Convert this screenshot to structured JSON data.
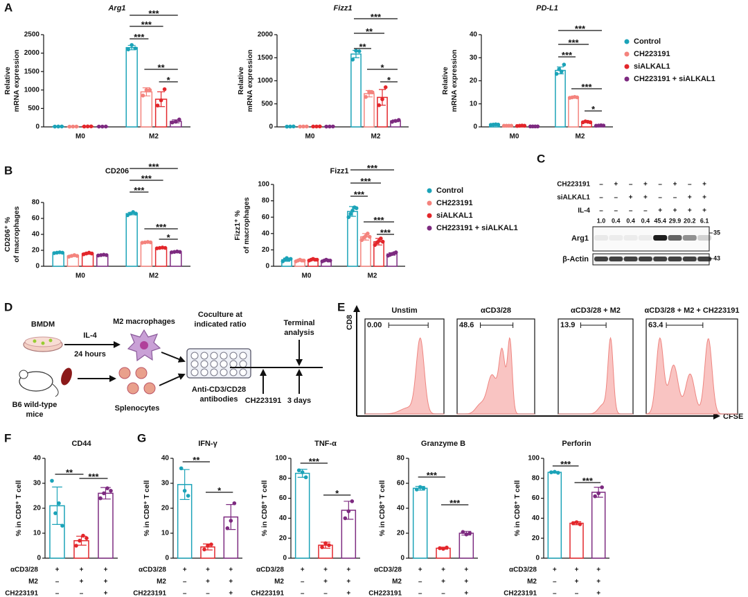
{
  "panels": [
    "A",
    "B",
    "C",
    "D",
    "E",
    "F",
    "G"
  ],
  "chart_data": [
    {
      "type": "bar",
      "title": "Arg1",
      "ylabel": [
        "Relative",
        "mRNA expression"
      ],
      "categories": [
        "M0",
        "M2"
      ],
      "ylim": [
        0,
        2500
      ],
      "yticks": [
        0,
        500,
        1000,
        1500,
        2000,
        2500
      ],
      "series": [
        {
          "name": "Control",
          "color": "#1ba3b8",
          "values": [
            10,
            2150
          ],
          "errors": [
            3,
            60
          ],
          "points": [
            [
              9,
              10,
              11
            ],
            [
              2100,
              2220,
              2130
            ]
          ]
        },
        {
          "name": "CH223191",
          "color": "#f4837d",
          "values": [
            8,
            950
          ],
          "errors": [
            2,
            110
          ],
          "points": [
            [
              7,
              8,
              9
            ],
            [
              850,
              1000,
              1000
            ]
          ]
        },
        {
          "name": "siALKAL1",
          "color": "#e3262b",
          "values": [
            12,
            750
          ],
          "errors": [
            3,
            200
          ],
          "points": [
            [
              10,
              12,
              14
            ],
            [
              580,
              720,
              1020
            ]
          ]
        },
        {
          "name": "CH223191 + siALKAL1",
          "color": "#7d2a80",
          "values": [
            9,
            150
          ],
          "errors": [
            2,
            40
          ],
          "points": [
            [
              8,
              9,
              10
            ],
            [
              120,
              140,
              200
            ]
          ]
        }
      ],
      "annotations": [
        "***",
        "***",
        "***",
        "**",
        "*"
      ]
    },
    {
      "type": "bar",
      "title": "Fizz1",
      "ylabel": [
        "Relative",
        "mRNA expression"
      ],
      "categories": [
        "M0",
        "M2"
      ],
      "ylim": [
        0,
        2000
      ],
      "yticks": [
        0,
        500,
        1000,
        1500,
        2000
      ],
      "series": [
        {
          "name": "Control",
          "color": "#1ba3b8",
          "values": [
            8,
            1580
          ],
          "errors": [
            5,
            80
          ],
          "points": [
            [
              6,
              8,
              10
            ],
            [
              1460,
              1650,
              1640
            ]
          ]
        },
        {
          "name": "CH223191",
          "color": "#f4837d",
          "values": [
            8,
            720
          ],
          "errors": [
            2,
            70
          ],
          "points": [
            [
              7,
              8,
              9
            ],
            [
              650,
              760,
              750
            ]
          ]
        },
        {
          "name": "siALKAL1",
          "color": "#e3262b",
          "values": [
            9,
            640
          ],
          "errors": [
            3,
            170
          ],
          "points": [
            [
              8,
              9,
              10
            ],
            [
              470,
              600,
              860
            ]
          ]
        },
        {
          "name": "CH223191 + siALKAL1",
          "color": "#7d2a80",
          "values": [
            8,
            130
          ],
          "errors": [
            2,
            20
          ],
          "points": [
            [
              7,
              8,
              9
            ],
            [
              110,
              130,
              150
            ]
          ]
        }
      ],
      "annotations": [
        "**",
        "**",
        "***",
        "*",
        "*"
      ]
    },
    {
      "type": "bar",
      "title": "PD-L1",
      "ylabel": [
        "Relative",
        "mRNA expression"
      ],
      "categories": [
        "M0",
        "M2"
      ],
      "ylim": [
        0,
        40
      ],
      "yticks": [
        0,
        10,
        20,
        30,
        40
      ],
      "series": [
        {
          "name": "Control",
          "color": "#1ba3b8",
          "values": [
            1,
            24.5
          ],
          "errors": [
            0.2,
            1.5
          ],
          "points": [
            [
              0.9,
              1,
              1.1,
              1
            ],
            [
              23,
              25,
              24,
              27
            ]
          ]
        },
        {
          "name": "CH223191",
          "color": "#f4837d",
          "values": [
            0.5,
            12.8
          ],
          "errors": [
            0.1,
            0.3
          ],
          "points": [
            [
              0.5,
              0.5,
              0.5,
              0.5
            ],
            [
              12.6,
              12.8,
              13,
              12.8
            ]
          ]
        },
        {
          "name": "siALKAL1",
          "color": "#e3262b",
          "values": [
            0.5,
            2.2
          ],
          "errors": [
            0.1,
            0.3
          ],
          "points": [
            [
              0.4,
              0.5,
              0.6,
              0.5
            ],
            [
              2,
              2.4,
              2.2,
              2
            ]
          ]
        },
        {
          "name": "CH223191 + siALKAL1",
          "color": "#7d2a80",
          "values": [
            0.2,
            0.6
          ],
          "errors": [
            0.05,
            0.1
          ],
          "points": [
            [
              0.2,
              0.2,
              0.2,
              0.2
            ],
            [
              0.5,
              0.6,
              0.7,
              0.6
            ]
          ]
        }
      ],
      "annotations": [
        "***",
        "***",
        "***",
        "***",
        "*"
      ]
    },
    {
      "type": "bar",
      "title": "CD206",
      "ylabel": [
        "CD206⁺ %",
        "of macrophages"
      ],
      "categories": [
        "M0",
        "M2"
      ],
      "ylim": [
        0,
        80
      ],
      "yticks": [
        0,
        20,
        40,
        60,
        80
      ],
      "series": [
        {
          "name": "Control",
          "color": "#1ba3b8",
          "values": [
            17,
            66
          ],
          "errors": [
            0.5,
            1.5
          ],
          "points": [
            [
              16.5,
              17,
              17.5,
              17
            ],
            [
              64,
              66,
              68,
              66
            ]
          ]
        },
        {
          "name": "CH223191",
          "color": "#f4837d",
          "values": [
            13,
            30
          ],
          "errors": [
            1,
            0.5
          ],
          "points": [
            [
              12,
              13,
              14,
              13
            ],
            [
              29.5,
              30,
              30.5,
              30
            ]
          ]
        },
        {
          "name": "siALKAL1",
          "color": "#e3262b",
          "values": [
            16,
            23
          ],
          "errors": [
            1,
            0.5
          ],
          "points": [
            [
              15,
              16,
              17,
              16
            ],
            [
              22.5,
              23,
              23.5,
              23
            ]
          ]
        },
        {
          "name": "CH223191 + siALKAL1",
          "color": "#7d2a80",
          "values": [
            14,
            18
          ],
          "errors": [
            0.5,
            0.5
          ],
          "points": [
            [
              13.5,
              14,
              14.5,
              14
            ],
            [
              17.5,
              18,
              18.5,
              18
            ]
          ]
        }
      ],
      "annotations": [
        "***",
        "***",
        "***",
        "***",
        "*"
      ]
    },
    {
      "type": "bar",
      "title": "Fizz1",
      "ylabel": [
        "Fizz1⁺ %",
        "of macrophages"
      ],
      "categories": [
        "M0",
        "M2"
      ],
      "ylim": [
        0,
        100
      ],
      "yticks": [
        0,
        20,
        40,
        60,
        80,
        100
      ],
      "series": [
        {
          "name": "Control",
          "color": "#1ba3b8",
          "values": [
            8,
            67
          ],
          "errors": [
            2,
            6
          ],
          "points": [
            [
              6,
              8,
              10,
              8,
              9
            ],
            [
              60,
              64,
              68,
              72,
              71
            ]
          ]
        },
        {
          "name": "CH223191",
          "color": "#f4837d",
          "values": [
            7,
            36
          ],
          "errors": [
            1,
            4
          ],
          "points": [
            [
              6,
              7,
              8,
              7,
              7
            ],
            [
              32,
              35,
              37,
              40,
              36
            ]
          ]
        },
        {
          "name": "siALKAL1",
          "color": "#e3262b",
          "values": [
            8,
            30
          ],
          "errors": [
            1,
            4
          ],
          "points": [
            [
              7,
              8,
              9,
              8,
              8
            ],
            [
              26,
              29,
              31,
              34,
              30
            ]
          ]
        },
        {
          "name": "CH223191 + siALKAL1",
          "color": "#7d2a80",
          "values": [
            7,
            15
          ],
          "errors": [
            1,
            1.5
          ],
          "points": [
            [
              6,
              7,
              8,
              7,
              7
            ],
            [
              13,
              14,
              15,
              16,
              17
            ]
          ]
        }
      ],
      "annotations": [
        "***",
        "***",
        "***",
        "***",
        "***"
      ]
    },
    {
      "type": "bar",
      "title": "CD44",
      "ylabel": [
        "% in CD8⁺ T cell"
      ],
      "categories": [
        null,
        null,
        null
      ],
      "ylim": [
        0,
        40
      ],
      "yticks": [
        0,
        10,
        20,
        30,
        40
      ],
      "colors": [
        "#1ba3b8",
        "#e3262b",
        "#7d2a80"
      ],
      "values": [
        21,
        7,
        26
      ],
      "errors": [
        7.5,
        1.8,
        2.3
      ],
      "points": [
        [
          31,
          18,
          22,
          13
        ],
        [
          5,
          7,
          9,
          8
        ],
        [
          24,
          26,
          28,
          27
        ]
      ],
      "annotations": [
        "**",
        "***"
      ],
      "conditions": [
        {
          "label": "αCD3/28",
          "signs": [
            "+",
            "+",
            "+"
          ]
        },
        {
          "label": "M2",
          "signs": [
            "–",
            "+",
            "+"
          ]
        },
        {
          "label": "CH223191",
          "signs": [
            "–",
            "–",
            "+"
          ]
        }
      ]
    },
    {
      "type": "bar",
      "title": "IFN-γ",
      "ylabel": [
        "% in CD8⁺ T cell"
      ],
      "categories": [
        null,
        null,
        null
      ],
      "ylim": [
        0,
        40
      ],
      "yticks": [
        0,
        10,
        20,
        30,
        40
      ],
      "colors": [
        "#1ba3b8",
        "#e3262b",
        "#7d2a80"
      ],
      "values": [
        29.5,
        4.5,
        16.5
      ],
      "errors": [
        6,
        1.2,
        5
      ],
      "points": [
        [
          36,
          27,
          25
        ],
        [
          3.5,
          5,
          5.5
        ],
        [
          12,
          15,
          22
        ]
      ],
      "annotations": [
        "**",
        "*"
      ],
      "conditions": [
        {
          "label": "αCD3/28",
          "signs": [
            "+",
            "+",
            "+"
          ]
        },
        {
          "label": "M2",
          "signs": [
            "–",
            "+",
            "+"
          ]
        },
        {
          "label": "CH223191",
          "signs": [
            "–",
            "–",
            "+"
          ]
        }
      ]
    },
    {
      "type": "bar",
      "title": "TNF-α",
      "ylabel": [
        "% in CD8⁺ T cell"
      ],
      "categories": [
        null,
        null,
        null
      ],
      "ylim": [
        0,
        100
      ],
      "yticks": [
        0,
        20,
        40,
        60,
        80,
        100
      ],
      "colors": [
        "#1ba3b8",
        "#e3262b",
        "#7d2a80"
      ],
      "values": [
        85,
        13,
        48
      ],
      "errors": [
        4,
        3,
        9
      ],
      "points": [
        [
          88,
          86,
          81
        ],
        [
          11,
          15,
          13
        ],
        [
          40,
          47,
          57
        ]
      ],
      "annotations": [
        "***",
        "*"
      ],
      "conditions": [
        {
          "label": "αCD3/28",
          "signs": [
            "+",
            "+",
            "+"
          ]
        },
        {
          "label": "M2",
          "signs": [
            "–",
            "+",
            "+"
          ]
        },
        {
          "label": "CH223191",
          "signs": [
            "–",
            "–",
            "+"
          ]
        }
      ]
    },
    {
      "type": "bar",
      "title": "Granzyme B",
      "ylabel": [
        "% in CD8⁺ T cell"
      ],
      "categories": [
        null,
        null,
        null
      ],
      "ylim": [
        0,
        80
      ],
      "yticks": [
        0,
        20,
        40,
        60,
        80
      ],
      "colors": [
        "#1ba3b8",
        "#e3262b",
        "#7d2a80"
      ],
      "values": [
        56,
        8,
        20
      ],
      "errors": [
        1.5,
        0.8,
        1.5
      ],
      "points": [
        [
          55,
          57,
          56
        ],
        [
          8,
          7.5,
          8.5
        ],
        [
          21,
          19,
          20
        ]
      ],
      "annotations": [
        "***",
        "***"
      ],
      "conditions": [
        {
          "label": "αCD3/28",
          "signs": [
            "+",
            "+",
            "+"
          ]
        },
        {
          "label": "M2",
          "signs": [
            "–",
            "+",
            "+"
          ]
        },
        {
          "label": "CH223191",
          "signs": [
            "–",
            "–",
            "+"
          ]
        }
      ]
    },
    {
      "type": "bar",
      "title": "Perforin",
      "ylabel": [
        "% in CD8⁺ T cell"
      ],
      "categories": [
        null,
        null,
        null
      ],
      "ylim": [
        0,
        100
      ],
      "yticks": [
        0,
        20,
        40,
        60,
        80,
        100
      ],
      "colors": [
        "#1ba3b8",
        "#e3262b",
        "#7d2a80"
      ],
      "values": [
        86,
        35,
        66
      ],
      "errors": [
        0.8,
        1.5,
        5
      ],
      "points": [
        [
          86,
          86.5,
          85.5
        ],
        [
          35,
          36,
          34
        ],
        [
          62,
          65,
          71
        ]
      ],
      "annotations": [
        "***",
        "***"
      ],
      "conditions": [
        {
          "label": "αCD3/28",
          "signs": [
            "+",
            "+",
            "+"
          ]
        },
        {
          "label": "M2",
          "signs": [
            "–",
            "+",
            "+"
          ]
        },
        {
          "label": "CH223191",
          "signs": [
            "–",
            "–",
            "+"
          ]
        }
      ]
    }
  ],
  "blot": {
    "rows": [
      {
        "label": "CH223191",
        "signs": [
          "–",
          "+",
          "–",
          "+",
          "–",
          "+",
          "–",
          "+"
        ]
      },
      {
        "label": "siALKAL1",
        "signs": [
          "–",
          "–",
          "+",
          "+",
          "–",
          "–",
          "+",
          "+"
        ]
      },
      {
        "label": "IL-4",
        "signs": [
          "–",
          "–",
          "–",
          "–",
          "+",
          "+",
          "+",
          "+"
        ]
      }
    ],
    "quantification": [
      "1.0",
      "0.4",
      "0.4",
      "0.4",
      "45.4",
      "29.9",
      "20.2",
      "6.1"
    ],
    "bands": [
      "Arg1",
      "β-Actin"
    ],
    "markers": [
      "35",
      "43"
    ]
  },
  "diagram": {
    "bmdm": "BMDM",
    "il4": "IL-4",
    "hours": "24 hours",
    "m2": "M2 macrophages",
    "coculture": [
      "Coculture at",
      "indicated ratio"
    ],
    "terminal": [
      "Terminal",
      "analysis"
    ],
    "mice": [
      "B6 wild-type",
      "mice"
    ],
    "splenocytes": "Splenocytes",
    "antibodies": [
      "Anti-CD3/CD28",
      "antibodies"
    ],
    "treatment": "CH223191",
    "days": "3 days"
  },
  "flow": {
    "y_axis": "CD8",
    "x_axis": "CFSE",
    "panels": [
      {
        "title": "Unstim",
        "gate": "0.00"
      },
      {
        "title": "αCD3/28",
        "gate": "48.6"
      },
      {
        "title": "αCD3/28 + M2",
        "gate": "13.9"
      },
      {
        "title": "αCD3/28 + M2 + CH223191",
        "gate": "63.4"
      }
    ]
  }
}
